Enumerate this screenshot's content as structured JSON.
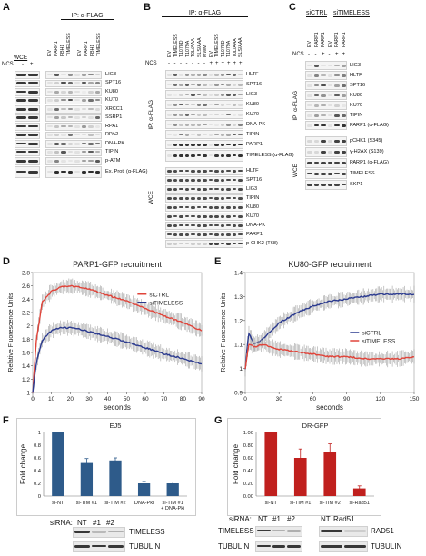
{
  "panels": {
    "A": {
      "label": "A",
      "ip_header": "IP: α-FLAG",
      "wce": "WCE",
      "lanes_wce": [
        "-",
        "+"
      ],
      "lanes_ip_left": [
        "EV",
        "PARP1",
        "FBH1",
        "TIMELESS"
      ],
      "lanes_ip_right": [
        "EV",
        "PARP1",
        "FBH1",
        "TIMELESS"
      ],
      "ncs": "NCS",
      "ncs_signs": [
        "-",
        "+"
      ],
      "rows": [
        "LIG3",
        "SPT16",
        "KU80",
        "KU70",
        "XRCC1",
        "SSRP1",
        "RPA1",
        "RPA2",
        "DNA-PK",
        "TIPIN",
        "p-ATM",
        "Ex. Prot. (α-FLAG)"
      ]
    },
    "B": {
      "label": "B",
      "ip_header": "IP: α-FLAG",
      "lanes": [
        "EV",
        "TIMELESS",
        "T1078D",
        "T1079A",
        "T0L/AAA",
        "SLS/AAA",
        "MWM",
        "EV",
        "TIMELESS",
        "T1078D",
        "T1079A",
        "T0L/AAA",
        "SLS/AAA"
      ],
      "ncs": "NCS",
      "ncs_signs": [
        "-",
        "-",
        "-",
        "-",
        "-",
        "-",
        "-",
        "+",
        "+",
        "+",
        "+",
        "+",
        "+"
      ],
      "side_ip": "IP: α-FLAG",
      "side_wce": "WCE",
      "rows_ip": [
        "HLTF",
        "SPT16",
        "LIG3",
        "KU80",
        "KU70",
        "DNA-PK",
        "TIPIN",
        "PARP1",
        "TIMELESS (α-FLAG)"
      ],
      "rows_wce": [
        "HLTF",
        "SPT16",
        "LIG3",
        "TIPIN",
        "KU80",
        "KU70",
        "DNA-PK",
        "PARP1",
        "p-CHK2 (T68)"
      ]
    },
    "C": {
      "label": "C",
      "group_left": "siCTRL",
      "group_right": "siTIMELESS",
      "lanes": [
        "EV",
        "PARP1",
        "PARP1",
        "EV",
        "PARP1",
        "PARP1"
      ],
      "ncs": "NCS",
      "ncs_signs": [
        "-",
        "-",
        "+",
        "-",
        "+",
        "+"
      ],
      "side_ip": "IP: α-FLAG",
      "side_wce": "WCE",
      "rows_ip": [
        "LIG3",
        "HLTF",
        "SPT16",
        "KU80",
        "KU70",
        "TIPIN",
        "PARP1 (α-FLAG)"
      ],
      "rows_wce": [
        "pCHK1 (S345)",
        "γ-H2AX (S139)",
        "PARP1 (α-FLAG)",
        "TIMELESS",
        "SKP1"
      ]
    },
    "D": {
      "label": "D"
    },
    "E": {
      "label": "E"
    },
    "F": {
      "label": "F",
      "sirna_label": "siRNA:",
      "sirna_lanes": [
        "NT",
        "#1",
        "#2"
      ],
      "blot_rows": [
        "TIMELESS",
        "TUBULIN"
      ]
    },
    "G": {
      "label": "G",
      "sirna_label": "siRNA:",
      "sirna_lanes": [
        "NT",
        "#1",
        "#2"
      ],
      "sirna_lanes_right": [
        "NT",
        "Rad51"
      ],
      "blot_rows_left": [
        "TIMELESS",
        "TUBULIN"
      ],
      "blot_rows_right": [
        "RAD51",
        "TUBULIN"
      ]
    }
  },
  "chart_data": [
    {
      "type": "line",
      "title": "PARP1-GFP recruitment",
      "xlabel": "seconds",
      "ylabel": "Relative Fluorescence Units",
      "xlim": [
        0,
        90
      ],
      "ylim": [
        1,
        2.8
      ],
      "xticks": [
        0,
        10,
        20,
        30,
        40,
        50,
        60,
        70,
        80,
        90
      ],
      "yticks": [
        1,
        1.2,
        1.4,
        1.6,
        1.8,
        2,
        2.2,
        2.4,
        2.6,
        2.8
      ],
      "legend": "right",
      "series": [
        {
          "name": "siCTRL",
          "color": "#e0443a",
          "x": [
            0,
            2,
            5,
            10,
            15,
            20,
            25,
            30,
            40,
            50,
            60,
            70,
            80,
            90
          ],
          "y": [
            1.0,
            1.8,
            2.35,
            2.52,
            2.58,
            2.6,
            2.58,
            2.55,
            2.46,
            2.37,
            2.26,
            2.15,
            2.05,
            1.93
          ]
        },
        {
          "name": "siTIMELESS",
          "color": "#2b3a8f",
          "x": [
            0,
            2,
            5,
            10,
            15,
            20,
            25,
            30,
            40,
            50,
            60,
            70,
            80,
            90
          ],
          "y": [
            1.0,
            1.45,
            1.78,
            1.93,
            1.97,
            1.97,
            1.95,
            1.91,
            1.84,
            1.76,
            1.67,
            1.58,
            1.51,
            1.43
          ]
        }
      ]
    },
    {
      "type": "line",
      "title": "KU80-GFP recruitment",
      "xlabel": "seconds",
      "ylabel": "Relative Fluorescence Units",
      "xlim": [
        0,
        150
      ],
      "ylim": [
        0.9,
        1.4
      ],
      "xticks": [
        0,
        30,
        60,
        90,
        120,
        150
      ],
      "yticks": [
        0.9,
        1,
        1.1,
        1.2,
        1.3,
        1.4
      ],
      "legend": "right",
      "series": [
        {
          "name": "siCTRL",
          "color": "#2b3a8f",
          "x": [
            0,
            3,
            8,
            15,
            30,
            45,
            60,
            75,
            90,
            105,
            120,
            135,
            150
          ],
          "y": [
            1.0,
            1.15,
            1.1,
            1.12,
            1.19,
            1.23,
            1.26,
            1.28,
            1.29,
            1.3,
            1.31,
            1.31,
            1.31
          ]
        },
        {
          "name": "siTIMELESS",
          "color": "#e0443a",
          "x": [
            0,
            3,
            8,
            15,
            30,
            45,
            60,
            75,
            90,
            105,
            120,
            135,
            150
          ],
          "y": [
            1.0,
            1.1,
            1.09,
            1.1,
            1.08,
            1.07,
            1.06,
            1.05,
            1.05,
            1.04,
            1.04,
            1.04,
            1.05
          ]
        }
      ]
    },
    {
      "type": "bar",
      "title": "EJ5",
      "ylabel": "Fold change",
      "ylim": [
        0,
        1
      ],
      "yticks": [
        0,
        0.2,
        0.4,
        0.6,
        0.8,
        1
      ],
      "color": "#2e5b8a",
      "categories": [
        "si-NT",
        "si-TIM #1",
        "si-TIM #2",
        "DNA-Pki",
        "si-TIM #1 + DNA-Pki"
      ],
      "values": [
        1.0,
        0.52,
        0.56,
        0.2,
        0.2
      ],
      "errors": [
        0,
        0.07,
        0.04,
        0.03,
        0.02
      ]
    },
    {
      "type": "bar",
      "title": "DR-GFP",
      "ylabel": "Fold change",
      "ylim": [
        0,
        1
      ],
      "yticks": [
        0,
        0.2,
        0.4,
        0.6,
        0.8,
        1
      ],
      "yticklabels": [
        "0.00",
        "0.20",
        "0.40",
        "0.60",
        "0.80",
        "1.00"
      ],
      "color": "#c0201e",
      "categories": [
        "si-NT",
        "si-TIM #1",
        "si-TIM #2",
        "si-Rad51"
      ],
      "values": [
        1.0,
        0.6,
        0.7,
        0.12
      ],
      "errors": [
        0,
        0.14,
        0.12,
        0.04
      ]
    }
  ]
}
